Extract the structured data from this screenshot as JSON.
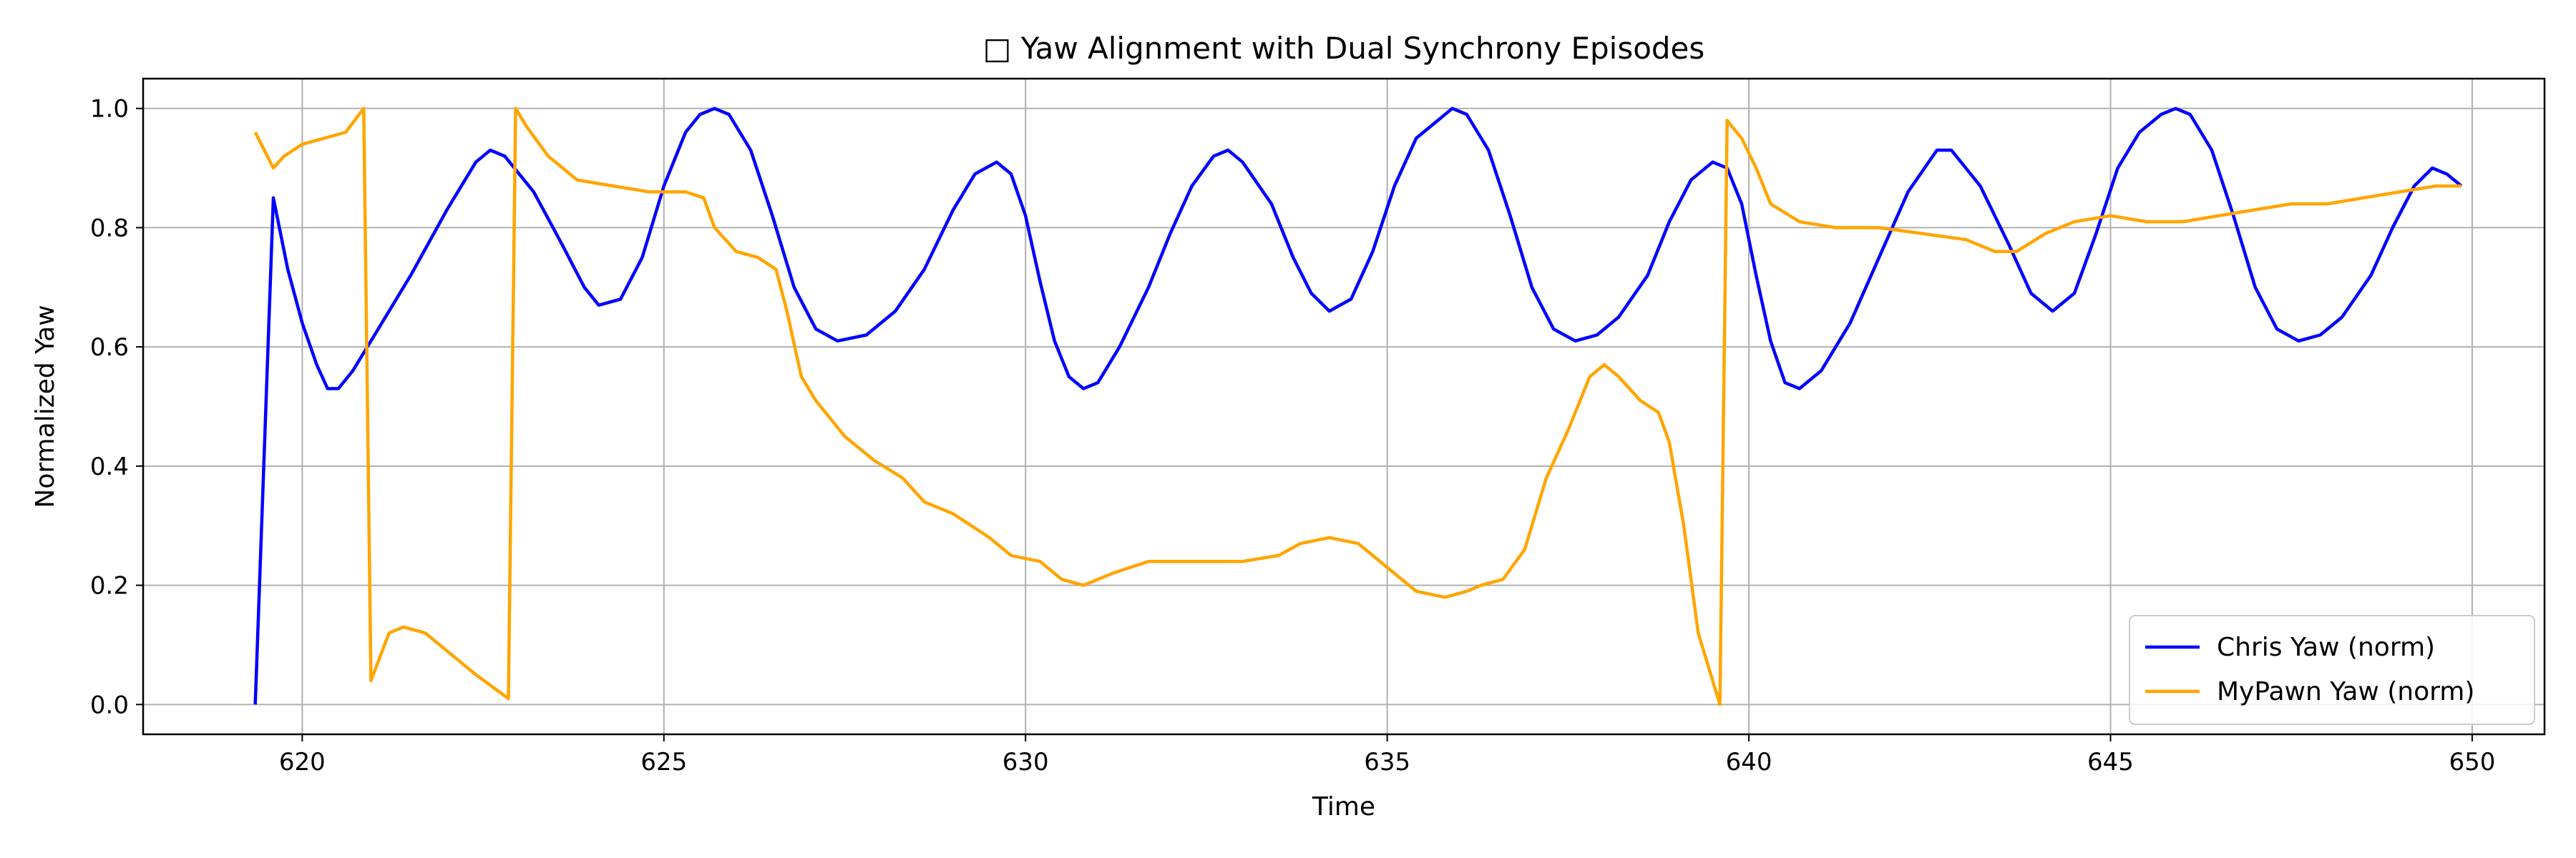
{
  "chart_data": {
    "type": "line",
    "title": "□ Yaw Alignment with Dual Synchrony Episodes",
    "xlabel": "Time",
    "ylabel": "Normalized Yaw",
    "xlim": [
      617.8,
      651.0
    ],
    "ylim": [
      -0.05,
      1.05
    ],
    "x_ticks": [
      620,
      625,
      630,
      635,
      640,
      645,
      650
    ],
    "y_ticks": [
      0.0,
      0.2,
      0.4,
      0.6,
      0.8,
      1.0
    ],
    "x_tick_labels": [
      "620",
      "625",
      "630",
      "635",
      "640",
      "645",
      "650"
    ],
    "y_tick_labels": [
      "0.0",
      "0.2",
      "0.4",
      "0.6",
      "0.8",
      "1.0"
    ],
    "grid": true,
    "legend_position": "bottom-right",
    "series": [
      {
        "name": "Chris Yaw (norm)",
        "color": "#0000ff",
        "points": [
          [
            619.35,
            0.0
          ],
          [
            619.6,
            0.85
          ],
          [
            619.8,
            0.73
          ],
          [
            620.0,
            0.64
          ],
          [
            620.2,
            0.57
          ],
          [
            620.35,
            0.53
          ],
          [
            620.5,
            0.53
          ],
          [
            620.7,
            0.56
          ],
          [
            621.0,
            0.62
          ],
          [
            621.5,
            0.72
          ],
          [
            622.0,
            0.83
          ],
          [
            622.4,
            0.91
          ],
          [
            622.6,
            0.93
          ],
          [
            622.8,
            0.92
          ],
          [
            623.2,
            0.86
          ],
          [
            623.6,
            0.77
          ],
          [
            623.9,
            0.7
          ],
          [
            624.1,
            0.67
          ],
          [
            624.4,
            0.68
          ],
          [
            624.7,
            0.75
          ],
          [
            625.0,
            0.87
          ],
          [
            625.3,
            0.96
          ],
          [
            625.5,
            0.99
          ],
          [
            625.7,
            1.0
          ],
          [
            625.9,
            0.99
          ],
          [
            626.2,
            0.93
          ],
          [
            626.5,
            0.82
          ],
          [
            626.8,
            0.7
          ],
          [
            627.1,
            0.63
          ],
          [
            627.4,
            0.61
          ],
          [
            627.8,
            0.62
          ],
          [
            628.2,
            0.66
          ],
          [
            628.6,
            0.73
          ],
          [
            629.0,
            0.83
          ],
          [
            629.3,
            0.89
          ],
          [
            629.6,
            0.91
          ],
          [
            629.8,
            0.89
          ],
          [
            630.0,
            0.82
          ],
          [
            630.2,
            0.71
          ],
          [
            630.4,
            0.61
          ],
          [
            630.6,
            0.55
          ],
          [
            630.8,
            0.53
          ],
          [
            631.0,
            0.54
          ],
          [
            631.3,
            0.6
          ],
          [
            631.7,
            0.7
          ],
          [
            632.0,
            0.79
          ],
          [
            632.3,
            0.87
          ],
          [
            632.6,
            0.92
          ],
          [
            632.8,
            0.93
          ],
          [
            633.0,
            0.91
          ],
          [
            633.4,
            0.84
          ],
          [
            633.7,
            0.75
          ],
          [
            633.95,
            0.69
          ],
          [
            634.2,
            0.66
          ],
          [
            634.5,
            0.68
          ],
          [
            634.8,
            0.76
          ],
          [
            635.1,
            0.87
          ],
          [
            635.4,
            0.95
          ],
          [
            635.7,
            0.98
          ],
          [
            635.9,
            1.0
          ],
          [
            636.1,
            0.99
          ],
          [
            636.4,
            0.93
          ],
          [
            636.7,
            0.82
          ],
          [
            637.0,
            0.7
          ],
          [
            637.3,
            0.63
          ],
          [
            637.6,
            0.61
          ],
          [
            637.9,
            0.62
          ],
          [
            638.2,
            0.65
          ],
          [
            638.6,
            0.72
          ],
          [
            638.9,
            0.81
          ],
          [
            639.2,
            0.88
          ],
          [
            639.5,
            0.91
          ],
          [
            639.7,
            0.9
          ],
          [
            639.9,
            0.84
          ],
          [
            640.1,
            0.72
          ],
          [
            640.3,
            0.61
          ],
          [
            640.5,
            0.54
          ],
          [
            640.7,
            0.53
          ],
          [
            641.0,
            0.56
          ],
          [
            641.4,
            0.64
          ],
          [
            641.8,
            0.75
          ],
          [
            642.2,
            0.86
          ],
          [
            642.6,
            0.93
          ],
          [
            642.8,
            0.93
          ],
          [
            643.2,
            0.87
          ],
          [
            643.6,
            0.77
          ],
          [
            643.9,
            0.69
          ],
          [
            644.2,
            0.66
          ],
          [
            644.5,
            0.69
          ],
          [
            644.8,
            0.79
          ],
          [
            645.1,
            0.9
          ],
          [
            645.4,
            0.96
          ],
          [
            645.7,
            0.99
          ],
          [
            645.9,
            1.0
          ],
          [
            646.1,
            0.99
          ],
          [
            646.4,
            0.93
          ],
          [
            646.7,
            0.82
          ],
          [
            647.0,
            0.7
          ],
          [
            647.3,
            0.63
          ],
          [
            647.6,
            0.61
          ],
          [
            647.9,
            0.62
          ],
          [
            648.2,
            0.65
          ],
          [
            648.6,
            0.72
          ],
          [
            648.9,
            0.8
          ],
          [
            649.2,
            0.87
          ],
          [
            649.45,
            0.9
          ],
          [
            649.65,
            0.89
          ],
          [
            649.85,
            0.87
          ]
        ]
      },
      {
        "name": "MyPawn Yaw (norm)",
        "color": "#ffa500",
        "points": [
          [
            619.35,
            0.96
          ],
          [
            619.6,
            0.9
          ],
          [
            619.75,
            0.92
          ],
          [
            620.0,
            0.94
          ],
          [
            620.3,
            0.95
          ],
          [
            620.6,
            0.96
          ],
          [
            620.85,
            1.0
          ],
          [
            620.95,
            0.04
          ],
          [
            621.2,
            0.12
          ],
          [
            621.4,
            0.13
          ],
          [
            621.7,
            0.12
          ],
          [
            622.0,
            0.09
          ],
          [
            622.4,
            0.05
          ],
          [
            622.85,
            0.01
          ],
          [
            622.95,
            1.0
          ],
          [
            623.1,
            0.97
          ],
          [
            623.4,
            0.92
          ],
          [
            623.8,
            0.88
          ],
          [
            624.3,
            0.87
          ],
          [
            624.8,
            0.86
          ],
          [
            625.3,
            0.86
          ],
          [
            625.55,
            0.85
          ],
          [
            625.7,
            0.8
          ],
          [
            626.0,
            0.76
          ],
          [
            626.3,
            0.75
          ],
          [
            626.55,
            0.73
          ],
          [
            626.7,
            0.66
          ],
          [
            626.9,
            0.55
          ],
          [
            627.1,
            0.51
          ],
          [
            627.5,
            0.45
          ],
          [
            627.9,
            0.41
          ],
          [
            628.3,
            0.38
          ],
          [
            628.6,
            0.34
          ],
          [
            629.0,
            0.32
          ],
          [
            629.5,
            0.28
          ],
          [
            629.8,
            0.25
          ],
          [
            630.2,
            0.24
          ],
          [
            630.5,
            0.21
          ],
          [
            630.8,
            0.2
          ],
          [
            631.2,
            0.22
          ],
          [
            631.7,
            0.24
          ],
          [
            632.0,
            0.24
          ],
          [
            632.5,
            0.24
          ],
          [
            633.0,
            0.24
          ],
          [
            633.5,
            0.25
          ],
          [
            633.8,
            0.27
          ],
          [
            634.2,
            0.28
          ],
          [
            634.6,
            0.27
          ],
          [
            635.0,
            0.23
          ],
          [
            635.4,
            0.19
          ],
          [
            635.8,
            0.18
          ],
          [
            636.1,
            0.19
          ],
          [
            636.3,
            0.2
          ],
          [
            636.6,
            0.21
          ],
          [
            636.9,
            0.26
          ],
          [
            637.2,
            0.38
          ],
          [
            637.5,
            0.46
          ],
          [
            637.8,
            0.55
          ],
          [
            638.0,
            0.57
          ],
          [
            638.2,
            0.55
          ],
          [
            638.5,
            0.51
          ],
          [
            638.75,
            0.49
          ],
          [
            638.9,
            0.44
          ],
          [
            639.1,
            0.3
          ],
          [
            639.3,
            0.12
          ],
          [
            639.5,
            0.04
          ],
          [
            639.6,
            0.0
          ],
          [
            639.7,
            0.98
          ],
          [
            639.9,
            0.95
          ],
          [
            640.1,
            0.9
          ],
          [
            640.3,
            0.84
          ],
          [
            640.7,
            0.81
          ],
          [
            641.2,
            0.8
          ],
          [
            641.8,
            0.8
          ],
          [
            642.4,
            0.79
          ],
          [
            643.0,
            0.78
          ],
          [
            643.4,
            0.76
          ],
          [
            643.7,
            0.76
          ],
          [
            644.1,
            0.79
          ],
          [
            644.5,
            0.81
          ],
          [
            645.0,
            0.82
          ],
          [
            645.5,
            0.81
          ],
          [
            646.0,
            0.81
          ],
          [
            646.5,
            0.82
          ],
          [
            647.0,
            0.83
          ],
          [
            647.5,
            0.84
          ],
          [
            648.0,
            0.84
          ],
          [
            648.5,
            0.85
          ],
          [
            649.0,
            0.86
          ],
          [
            649.5,
            0.87
          ],
          [
            649.85,
            0.87
          ]
        ]
      }
    ]
  }
}
